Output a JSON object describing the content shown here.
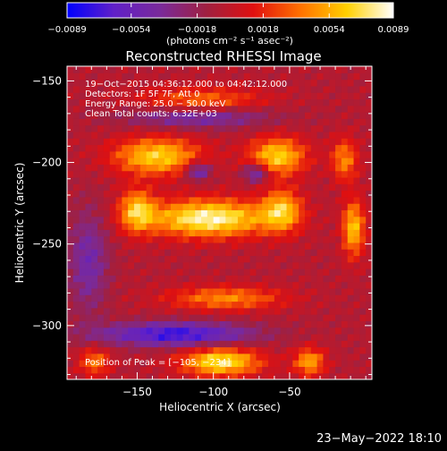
{
  "chart_data": {
    "type": "heatmap",
    "title": "Reconstructed RHESSI Image",
    "xlabel": "Heliocentric X (arcsec)",
    "ylabel": "Heliocentric Y (arcsec)",
    "xlim": [
      -196,
      4
    ],
    "ylim": [
      -333,
      -141
    ],
    "x_ticks": [
      -150,
      -100,
      -50
    ],
    "y_ticks": [
      -150,
      -200,
      -250,
      -300
    ],
    "x_tick_labels": [
      "−150",
      "−100",
      "−50"
    ],
    "y_tick_labels": [
      "−150",
      "−200",
      "−250",
      "−300"
    ],
    "grid": false,
    "colorbar": {
      "min": -0.0089,
      "max": 0.0089,
      "ticks": [
        -0.0089,
        -0.0054,
        -0.0018,
        0.0018,
        0.0054,
        0.0089
      ],
      "tick_labels": [
        "−0.0089",
        "−0.0054",
        "−0.0018",
        "0.0018",
        "0.0054",
        "0.0089"
      ],
      "unit_label": "(photons cm⁻² s⁻¹ asec⁻²)",
      "colors": [
        "#0000ff",
        "#6020c8",
        "#7a2a9a",
        "#a02040",
        "#e01010",
        "#ff7000",
        "#ffd000",
        "#ffffff"
      ]
    },
    "annotations": [
      "19−Oct−2015 04:36:12.000 to 04:42:12.000",
      "Detectors: 1F 5F 7F, Att 0",
      "Energy Range: 25.0 − 50.0 keV",
      "Clean    Total counts: 6.32E+03"
    ],
    "peak_label": "Position of Peak = [−105, −234]",
    "peak": [
      -105,
      -234
    ],
    "features": [
      {
        "x": -103,
        "y": -234,
        "sx": 28,
        "sy": 8,
        "a": 1.0
      },
      {
        "x": -150,
        "y": -229,
        "sx": 8,
        "sy": 9,
        "a": 0.7
      },
      {
        "x": -55,
        "y": -229,
        "sx": 9,
        "sy": 9,
        "a": 0.7
      },
      {
        "x": -137,
        "y": -196,
        "sx": 20,
        "sy": 8,
        "a": 0.8
      },
      {
        "x": -58,
        "y": -196,
        "sx": 13,
        "sy": 8,
        "a": 0.8
      },
      {
        "x": -14,
        "y": -198,
        "sx": 6,
        "sy": 9,
        "a": 0.55
      },
      {
        "x": -108,
        "y": -163,
        "sx": 28,
        "sy": 6,
        "a": 0.55
      },
      {
        "x": -8,
        "y": -240,
        "sx": 5,
        "sy": 12,
        "a": 0.75
      },
      {
        "x": -92,
        "y": -283,
        "sx": 26,
        "sy": 5,
        "a": 0.55
      },
      {
        "x": -95,
        "y": -322,
        "sx": 18,
        "sy": 6,
        "a": 0.9
      },
      {
        "x": -37,
        "y": -322,
        "sx": 7,
        "sy": 6,
        "a": 0.65
      },
      {
        "x": -178,
        "y": -322,
        "sx": 7,
        "sy": 6,
        "a": 0.5
      },
      {
        "x": -125,
        "y": -305,
        "sx": 35,
        "sy": 5,
        "a": -0.8
      },
      {
        "x": -110,
        "y": -171,
        "sx": 32,
        "sy": 5,
        "a": -0.6
      },
      {
        "x": -110,
        "y": -205,
        "sx": 6,
        "sy": 4,
        "a": -0.6
      },
      {
        "x": -72,
        "y": -206,
        "sx": 6,
        "sy": 4,
        "a": -0.6
      },
      {
        "x": -182,
        "y": -260,
        "sx": 9,
        "sy": 22,
        "a": -0.45
      }
    ]
  },
  "footer": {
    "date_stamp": "23−May−2022 18:10"
  }
}
